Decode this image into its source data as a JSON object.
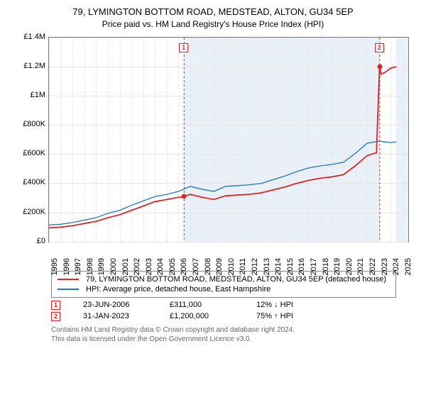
{
  "title_line1": "79, LYMINGTON BOTTOM ROAD, MEDSTEAD, ALTON, GU34 5EP",
  "title_line2": "Price paid vs. HM Land Registry's House Price Index (HPI)",
  "chart": {
    "type": "line",
    "background_color": "#ffffff",
    "border_color": "#7a7a7a",
    "grid_color": "#e6e6e6",
    "x": {
      "min": 1995,
      "max": 2025.5,
      "ticks": [
        1995,
        1996,
        1997,
        1998,
        1999,
        2000,
        2001,
        2002,
        2003,
        2004,
        2005,
        2006,
        2007,
        2008,
        2009,
        2010,
        2011,
        2012,
        2013,
        2014,
        2015,
        2016,
        2017,
        2018,
        2019,
        2020,
        2021,
        2022,
        2023,
        2024,
        2025
      ]
    },
    "y": {
      "min": 0,
      "max": 1400000,
      "ticks": [
        0,
        200000,
        400000,
        600000,
        800000,
        1000000,
        1200000,
        1400000
      ],
      "tick_labels": [
        "£0",
        "£200K",
        "£400K",
        "£600K",
        "£800K",
        "£1M",
        "£1.2M",
        "£1.4M"
      ]
    },
    "shaded_bands": [
      {
        "from": 2006.47,
        "to": 2023.08,
        "color": "rgba(180,200,230,0.28)"
      },
      {
        "from": 2024.5,
        "to": 2025.5,
        "color": "rgba(180,200,230,0.28)"
      }
    ],
    "series": [
      {
        "name": "property",
        "label": "79, LYMINGTON BOTTOM ROAD, MEDSTEAD, ALTON, GU34 5EP (detached house)",
        "color": "#d62728",
        "width": 1.8,
        "points": [
          [
            1995,
            95000
          ],
          [
            1996,
            100000
          ],
          [
            1997,
            110000
          ],
          [
            1998,
            125000
          ],
          [
            1999,
            140000
          ],
          [
            2000,
            165000
          ],
          [
            2001,
            185000
          ],
          [
            2002,
            215000
          ],
          [
            2003,
            245000
          ],
          [
            2004,
            275000
          ],
          [
            2005,
            290000
          ],
          [
            2006,
            305000
          ],
          [
            2006.47,
            311000
          ],
          [
            2007,
            325000
          ],
          [
            2008,
            305000
          ],
          [
            2009,
            290000
          ],
          [
            2010,
            315000
          ],
          [
            2011,
            320000
          ],
          [
            2012,
            325000
          ],
          [
            2013,
            335000
          ],
          [
            2014,
            355000
          ],
          [
            2015,
            375000
          ],
          [
            2016,
            400000
          ],
          [
            2017,
            420000
          ],
          [
            2018,
            435000
          ],
          [
            2019,
            445000
          ],
          [
            2020,
            460000
          ],
          [
            2021,
            520000
          ],
          [
            2022,
            590000
          ],
          [
            2022.8,
            610000
          ],
          [
            2023.06,
            1200000
          ],
          [
            2023.2,
            1150000
          ],
          [
            2023.5,
            1160000
          ],
          [
            2024,
            1190000
          ],
          [
            2024.5,
            1200000
          ]
        ]
      },
      {
        "name": "hpi",
        "label": "HPI: Average price, detached house, East Hampshire",
        "color": "#1f77b4",
        "width": 1.3,
        "points": [
          [
            1995,
            115000
          ],
          [
            1996,
            120000
          ],
          [
            1997,
            132000
          ],
          [
            1998,
            148000
          ],
          [
            1999,
            165000
          ],
          [
            2000,
            195000
          ],
          [
            2001,
            215000
          ],
          [
            2002,
            250000
          ],
          [
            2003,
            280000
          ],
          [
            2004,
            310000
          ],
          [
            2005,
            325000
          ],
          [
            2006,
            345000
          ],
          [
            2007,
            380000
          ],
          [
            2008,
            360000
          ],
          [
            2009,
            345000
          ],
          [
            2010,
            380000
          ],
          [
            2011,
            385000
          ],
          [
            2012,
            390000
          ],
          [
            2013,
            400000
          ],
          [
            2014,
            425000
          ],
          [
            2015,
            450000
          ],
          [
            2016,
            480000
          ],
          [
            2017,
            505000
          ],
          [
            2018,
            520000
          ],
          [
            2019,
            530000
          ],
          [
            2020,
            545000
          ],
          [
            2021,
            605000
          ],
          [
            2022,
            675000
          ],
          [
            2023,
            690000
          ],
          [
            2024,
            680000
          ],
          [
            2024.5,
            685000
          ]
        ]
      }
    ],
    "sale_markers": [
      {
        "id": "1",
        "x": 2006.47,
        "y": 311000,
        "color": "#d62728"
      },
      {
        "id": "2",
        "x": 2023.08,
        "y": 1200000,
        "color": "#d62728"
      }
    ]
  },
  "legend": {
    "series1_label": "79, LYMINGTON BOTTOM ROAD, MEDSTEAD, ALTON, GU34 5EP (detached house)",
    "series2_label": "HPI: Average price, detached house, East Hampshire"
  },
  "sales": [
    {
      "id": "1",
      "date": "23-JUN-2006",
      "price": "£311,000",
      "delta": "12% ↓ HPI",
      "color": "#d62728"
    },
    {
      "id": "2",
      "date": "31-JAN-2023",
      "price": "£1,200,000",
      "delta": "75% ↑ HPI",
      "color": "#d62728"
    }
  ],
  "footer": {
    "line1": "Contains HM Land Registry data © Crown copyright and database right 2024.",
    "line2": "This data is licensed under the Open Government Licence v3.0."
  }
}
